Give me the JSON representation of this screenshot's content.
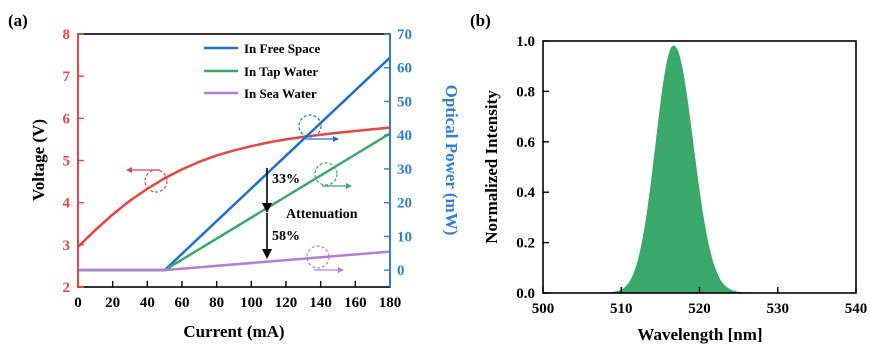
{
  "chart_data": [
    {
      "type": "line",
      "panel_label": "(a)",
      "xlabel": "Current (mA)",
      "ylabel_left": "Voltage (V)",
      "ylabel_right": "Optical Power (mW)",
      "xlim": [
        0,
        180
      ],
      "ylim_left": [
        2,
        8
      ],
      "ylim_right": [
        -5,
        70
      ],
      "x_ticks": [
        "0",
        "20",
        "40",
        "60",
        "80",
        "100",
        "120",
        "140",
        "160",
        "180"
      ],
      "y_left_ticks": [
        "2",
        "3",
        "4",
        "5",
        "6",
        "7",
        "8"
      ],
      "y_right_ticks": [
        "0",
        "10",
        "20",
        "30",
        "40",
        "50",
        "60",
        "70"
      ],
      "colors": {
        "voltage": "#e84545",
        "free_space": "#1f6fd1",
        "tap_water": "#3aa86b",
        "sea_water": "#b07fd6",
        "axis_left": "#e84545",
        "axis_right": "#2e7fd6"
      },
      "voltage_series": {
        "x": [
          0,
          10,
          20,
          30,
          40,
          50,
          60,
          70,
          80,
          90,
          100,
          110,
          120,
          130,
          140,
          150,
          160,
          170,
          180
        ],
        "y": [
          2.95,
          3.35,
          3.72,
          4.05,
          4.33,
          4.58,
          4.79,
          4.97,
          5.12,
          5.24,
          5.34,
          5.43,
          5.5,
          5.56,
          5.61,
          5.66,
          5.7,
          5.74,
          5.78
        ]
      },
      "series": [
        {
          "name": "In Free Space",
          "x": [
            0,
            50,
            180
          ],
          "y": [
            0,
            0,
            63
          ]
        },
        {
          "name": "In Tap Water",
          "x": [
            0,
            50,
            180
          ],
          "y": [
            0,
            0,
            40.5
          ]
        },
        {
          "name": "In Sea Water",
          "x": [
            0,
            50,
            180
          ],
          "y": [
            0,
            0,
            5.5
          ]
        }
      ],
      "legend_position": "top-right",
      "annotations": {
        "pct1": "33%",
        "pct2": "58%",
        "attenuation": "Attenuation"
      }
    },
    {
      "type": "area",
      "panel_label": "(b)",
      "xlabel": "Wavelength [nm]",
      "ylabel": "Normalized Intensity",
      "xlim": [
        500,
        540
      ],
      "ylim": [
        0,
        1.0
      ],
      "x_ticks": [
        "500",
        "510",
        "520",
        "530",
        "540"
      ],
      "y_ticks": [
        "0.0",
        "0.2",
        "0.4",
        "0.6",
        "0.8",
        "1.0"
      ],
      "color": "#3aa86b",
      "peak_x": 516.7,
      "peak_y": 0.98,
      "x": [
        500,
        504,
        508,
        510,
        511,
        512,
        513,
        514,
        515,
        516,
        516.7,
        517.5,
        518,
        519,
        520,
        521,
        522,
        523,
        524,
        526,
        530,
        535,
        540
      ],
      "y": [
        0,
        0.002,
        0.008,
        0.02,
        0.04,
        0.09,
        0.2,
        0.42,
        0.7,
        0.92,
        0.98,
        0.93,
        0.86,
        0.64,
        0.42,
        0.24,
        0.13,
        0.06,
        0.03,
        0.01,
        0.002,
        0,
        0
      ]
    }
  ]
}
